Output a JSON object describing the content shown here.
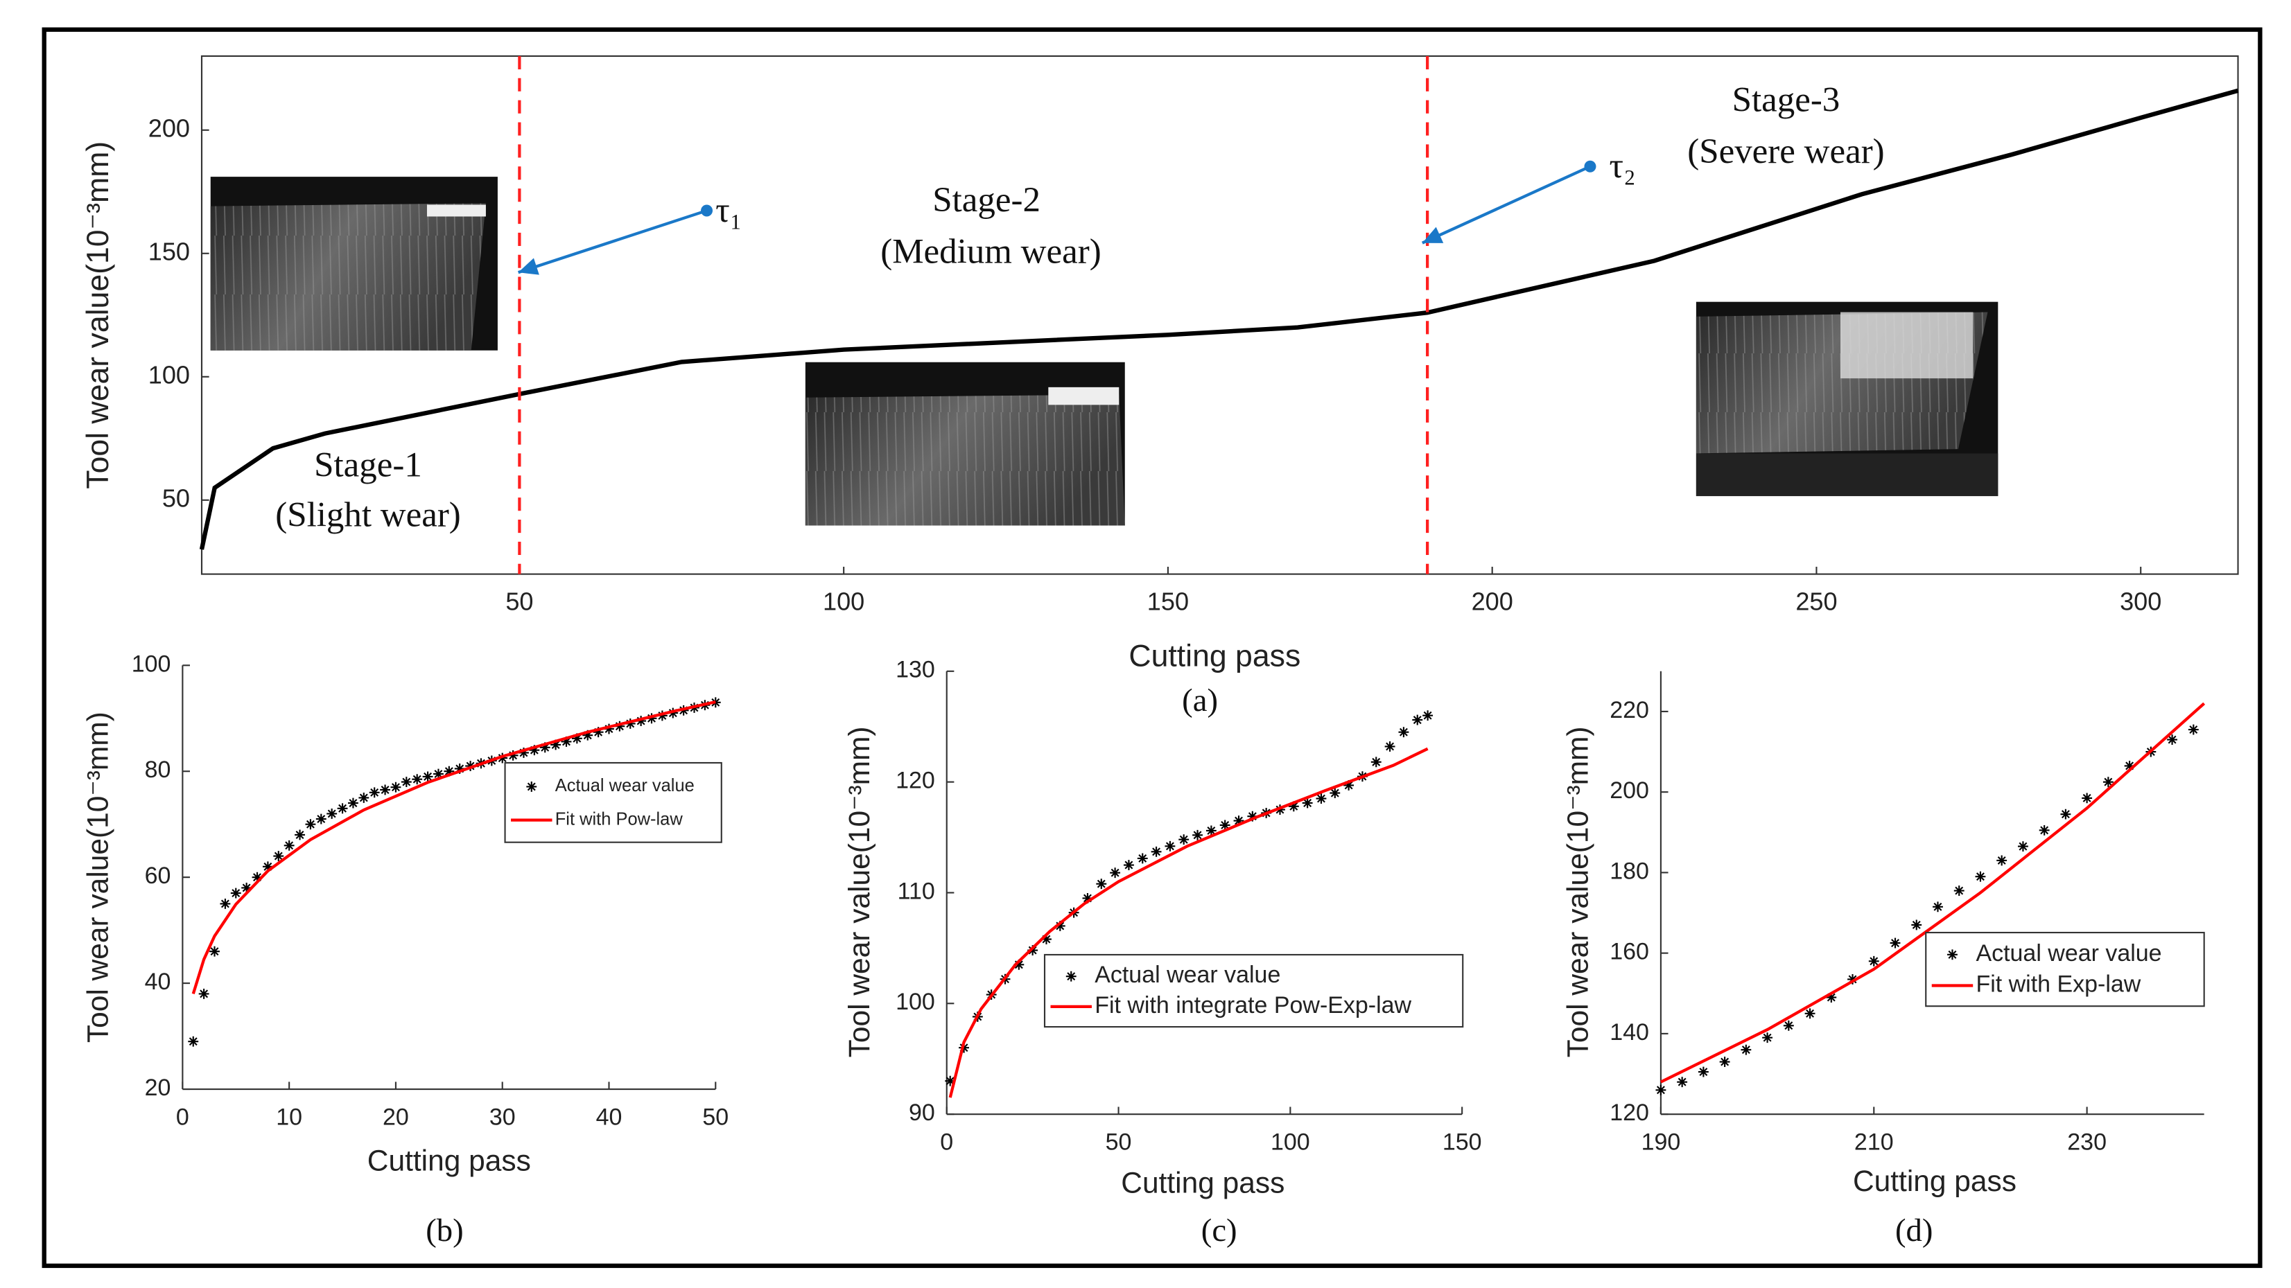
{
  "chart_data": [
    {
      "type": "line",
      "caption": "(a)",
      "xlabel": "Cutting pass",
      "ylabel": "Tool wear value(10⁻³mm)",
      "xlim": [
        1,
        315
      ],
      "ylim": [
        20,
        230
      ],
      "xticks": [
        50,
        100,
        150,
        200,
        250,
        300
      ],
      "yticks": [
        50,
        100,
        150,
        200
      ],
      "x": [
        1,
        3,
        12,
        20,
        50,
        75,
        100,
        150,
        170,
        190,
        225,
        257,
        280,
        300,
        315
      ],
      "series": [
        {
          "color": "#000000",
          "values": [
            30,
            55,
            71,
            77,
            93,
            106,
            111,
            117,
            120,
            126,
            147,
            174,
            190,
            205,
            216
          ]
        }
      ],
      "thresholds": [
        50,
        190
      ],
      "threshold_color": "#ff2020",
      "annotations": [
        "Stage-1",
        "(Slight wear)",
        "Stage-2",
        "(Medium wear)",
        "Stage-3",
        "(Severe wear)",
        "τ₁",
        "τ₂"
      ]
    },
    {
      "type": "scatter",
      "caption": "(b)",
      "xlabel": "Cutting pass",
      "ylabel": "Tool wear value(10⁻³mm)",
      "xlim": [
        0,
        50
      ],
      "ylim": [
        20,
        100
      ],
      "xticks": [
        0,
        10,
        20,
        30,
        40,
        50
      ],
      "yticks": [
        20,
        40,
        60,
        80,
        100
      ],
      "legend": "east",
      "series": [
        {
          "name": "Actual wear value",
          "mode": "markers",
          "color": "#000000",
          "x": [
            1,
            2,
            3,
            4,
            5,
            6,
            7,
            8,
            9,
            10,
            11,
            12,
            13,
            14,
            15,
            16,
            17,
            18,
            19,
            20,
            21,
            22,
            23,
            24,
            25,
            26,
            27,
            28,
            29,
            30,
            31,
            32,
            33,
            34,
            35,
            36,
            37,
            38,
            39,
            40,
            41,
            42,
            43,
            44,
            45,
            46,
            47,
            48,
            49,
            50
          ],
          "values": [
            29,
            38,
            46,
            55,
            57,
            58,
            60,
            62,
            64,
            66,
            68,
            70,
            71,
            72,
            73,
            74,
            75,
            76,
            76.5,
            77,
            78,
            78.5,
            79,
            79.5,
            80,
            80.5,
            81,
            81.5,
            82,
            82.5,
            83,
            83.5,
            84,
            84.5,
            85,
            85.6,
            86.2,
            86.8,
            87.4,
            88,
            88.5,
            89,
            89.5,
            90,
            90.5,
            91,
            91.5,
            92,
            92.5,
            93
          ]
        },
        {
          "name": "Fit with Pow-law",
          "mode": "line",
          "color": "#ff0000",
          "x": [
            1,
            2,
            3,
            5,
            8,
            12,
            17,
            23,
            30,
            38,
            46,
            50
          ],
          "values": [
            38,
            44.5,
            48.9,
            54.9,
            61.2,
            67.1,
            72.7,
            77.9,
            82.8,
            87.4,
            91.3,
            93.1
          ]
        }
      ]
    },
    {
      "type": "scatter",
      "caption": "(c)",
      "xlabel": "Cutting pass",
      "ylabel": "Tool wear value(10⁻³mm)",
      "xlim": [
        0,
        150
      ],
      "ylim": [
        90,
        130
      ],
      "xticks": [
        0,
        50,
        100,
        150
      ],
      "yticks": [
        90,
        100,
        110,
        120,
        130
      ],
      "legend": "south",
      "series": [
        {
          "name": "Actual wear value",
          "mode": "markers",
          "color": "#000000",
          "x": [
            1,
            5,
            9,
            13,
            17,
            21,
            25,
            29,
            33,
            37,
            41,
            45,
            49,
            53,
            57,
            61,
            65,
            69,
            73,
            77,
            81,
            85,
            89,
            93,
            97,
            101,
            105,
            109,
            113,
            117,
            121,
            125,
            129,
            133,
            137,
            140
          ],
          "values": [
            93,
            96,
            98.8,
            100.8,
            102.2,
            103.5,
            104.8,
            105.8,
            107,
            108.2,
            109.5,
            110.8,
            111.8,
            112.5,
            113.1,
            113.7,
            114.2,
            114.8,
            115.2,
            115.6,
            116.1,
            116.5,
            116.9,
            117.2,
            117.5,
            117.8,
            118.1,
            118.5,
            119,
            119.7,
            120.5,
            121.8,
            123.2,
            124.5,
            125.6,
            126
          ]
        },
        {
          "name": "Fit with integrate Pow-Exp-law",
          "mode": "line",
          "color": "#ff0000",
          "x": [
            1,
            5,
            10,
            20,
            30,
            40,
            50,
            70,
            90,
            110,
            130,
            140
          ],
          "values": [
            91.5,
            96.5,
            99.5,
            103.5,
            106.5,
            109,
            111,
            114.2,
            116.8,
            119.2,
            121.5,
            123
          ]
        }
      ]
    },
    {
      "type": "scatter",
      "caption": "(d)",
      "xlabel": "Cutting pass",
      "ylabel": "Tool wear value(10⁻³mm)",
      "xlim": [
        190,
        241
      ],
      "ylim": [
        120,
        230
      ],
      "xticks": [
        190,
        210,
        230
      ],
      "yticks": [
        120,
        140,
        160,
        180,
        200,
        220
      ],
      "legend": "southeast",
      "series": [
        {
          "name": "Actual wear value",
          "mode": "markers",
          "color": "#000000",
          "x": [
            190,
            192,
            194,
            196,
            198,
            200,
            202,
            204,
            206,
            208,
            210,
            212,
            214,
            216,
            218,
            220,
            222,
            224,
            226,
            228,
            230,
            232,
            234,
            236,
            238,
            240
          ],
          "values": [
            126,
            128,
            130.5,
            133,
            136,
            139,
            142,
            145,
            149,
            153.5,
            158,
            162.5,
            167,
            171.5,
            175.5,
            179,
            183,
            186.5,
            190.5,
            194.5,
            198.5,
            202.5,
            206.5,
            210,
            213,
            215.5
          ]
        },
        {
          "name": "Fit with Exp-law",
          "mode": "line",
          "color": "#ff0000",
          "x": [
            190,
            200,
            210,
            220,
            230,
            241
          ],
          "values": [
            128,
            141,
            156,
            175,
            196,
            222
          ]
        }
      ]
    }
  ]
}
